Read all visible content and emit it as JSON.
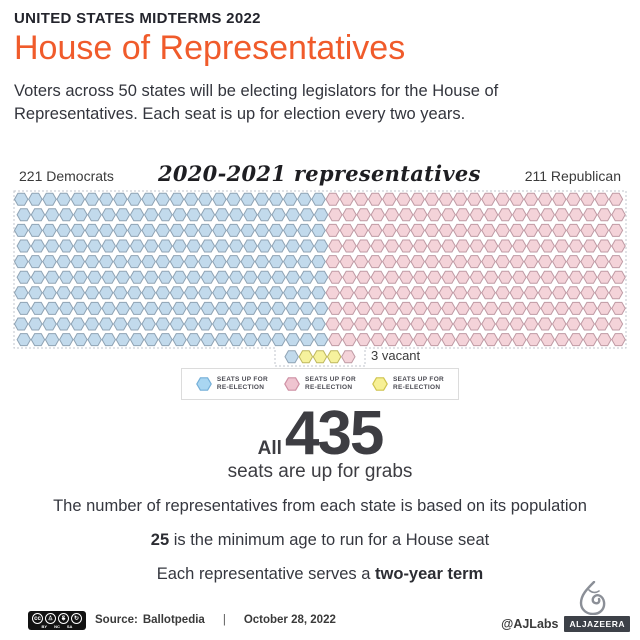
{
  "header": {
    "kicker": "UNITED STATES MIDTERMS 2022",
    "title": "House of Representatives",
    "description": "Voters across 50 states will be electing legislators for the House of Representatives. Each seat is up for election every two years."
  },
  "chart": {
    "left_label": "221 Democrats",
    "title": "2020-2021 representatives",
    "right_label": "211 Republican",
    "vacant_label": "3 vacant"
  },
  "chart_data": {
    "type": "seat-grid",
    "title": "2020-2021 representatives",
    "total_seats": 435,
    "rows": 10,
    "cols": 43,
    "dem_cols": 22,
    "groups": [
      {
        "key": "democrat",
        "name": "Democrats",
        "seats": 221,
        "fill": "#c2daec",
        "stroke": "#8fa3b4"
      },
      {
        "key": "republican",
        "name": "Republican",
        "seats": 211,
        "fill": "#f4d3d9",
        "stroke": "#bf9aa4"
      },
      {
        "key": "vacant",
        "name": "Vacant",
        "seats": 3,
        "fill": "#f6f29d",
        "stroke": "#beb75f"
      }
    ],
    "overflow_row": [
      "democrat",
      "vacant",
      "vacant",
      "vacant",
      "republican"
    ],
    "annotations": [
      "3 vacant"
    ]
  },
  "legend": {
    "items": [
      {
        "key": "democrat",
        "line1": "SEATS UP FOR",
        "line2": "RE-ELECTION",
        "fill": "#a9d6f2",
        "stroke": "#74afd8"
      },
      {
        "key": "republican",
        "line1": "SEATS UP FOR",
        "line2": "RE-ELECTION",
        "fill": "#efc4d0",
        "stroke": "#ce8fa3"
      },
      {
        "key": "vacant",
        "line1": "SEATS UP FOR",
        "line2": "RE-ELECTION",
        "fill": "#f7f096",
        "stroke": "#cfc34d"
      }
    ]
  },
  "stats": {
    "all_label": "All",
    "big_number": "435",
    "sub_label": "seats are up for grabs"
  },
  "facts": {
    "line1": "The number of representatives from each state is based on its population",
    "line2_bold": "25",
    "line2_rest": " is the minimum age to run for a House seat",
    "line3_pre": "Each representative serves a ",
    "line3_bold": "two-year term"
  },
  "footer": {
    "source_label": "Source:",
    "source_value": "Ballotpedia",
    "divider": "|",
    "date": "October 28, 2022",
    "handle": "@AJLabs",
    "logo_text": "ALJAZEERA",
    "cc": {
      "glyphs": [
        "cc",
        "♙",
        "$",
        "↻"
      ],
      "labels": [
        "BY",
        "NC",
        "SA"
      ]
    }
  },
  "colors": {
    "accent_orange": "#f05b2b",
    "democrat_blue": "#c2daec",
    "republican_pink": "#f4d3d9",
    "vacant_yellow": "#f6f29d",
    "text_dark": "#23242c",
    "border_dotted": "#c2c6cc"
  }
}
